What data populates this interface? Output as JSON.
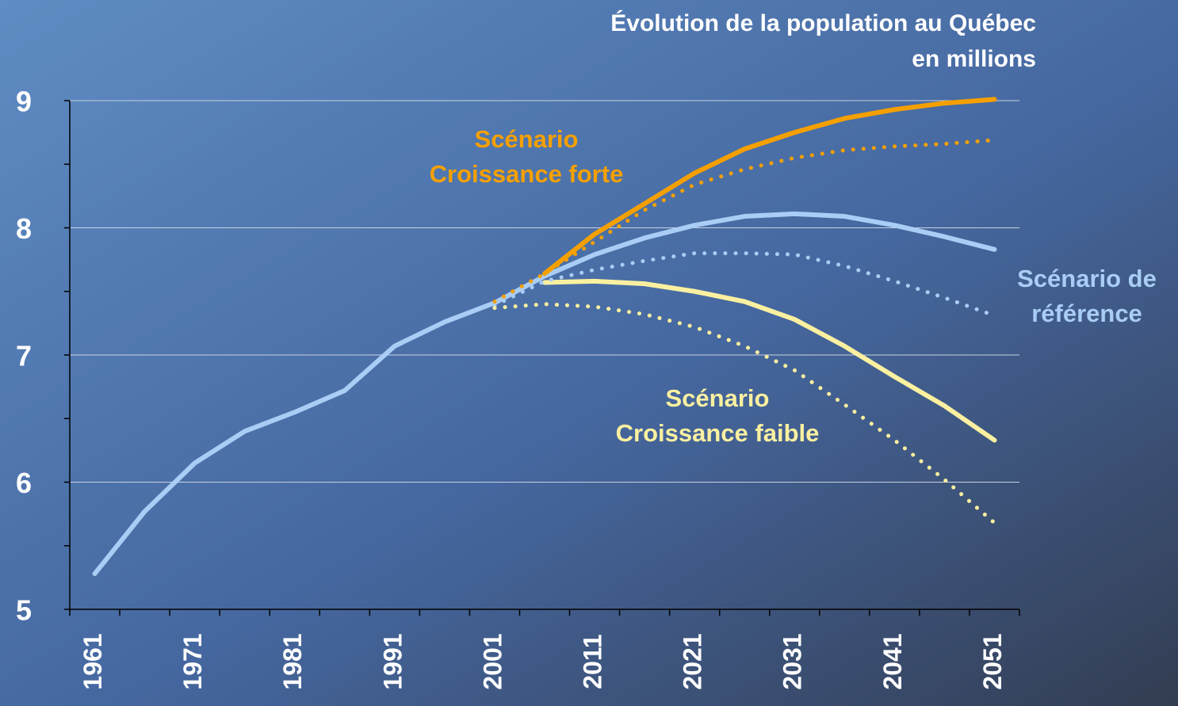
{
  "chart_data": {
    "type": "line",
    "title": [
      "Évolution de la population au Québec",
      "en millions"
    ],
    "categories": [
      "1961",
      null,
      "1971",
      null,
      "1981",
      null,
      "1991",
      null,
      "2001",
      null,
      "2011",
      null,
      "2021",
      null,
      "2031",
      null,
      "2041",
      null,
      "2051"
    ],
    "series": [
      {
        "color": "#a9cdf5",
        "dashed": false,
        "values": [
          5.28,
          5.77,
          6.15,
          6.4,
          6.55,
          6.72,
          7.07,
          7.26,
          7.41,
          7.62,
          7.79,
          7.92,
          8.02,
          8.09,
          8.11,
          8.09,
          8.02,
          7.93,
          7.83
        ]
      },
      {
        "color": "#f5a000",
        "dashed": false,
        "values": [
          null,
          null,
          null,
          null,
          null,
          null,
          null,
          null,
          null,
          7.64,
          7.95,
          8.19,
          8.43,
          8.62,
          8.75,
          8.86,
          8.93,
          8.98,
          9.01
        ]
      },
      {
        "color": "#faf0a0",
        "dashed": false,
        "values": [
          null,
          null,
          null,
          null,
          null,
          null,
          null,
          null,
          null,
          7.57,
          7.58,
          7.56,
          7.5,
          7.42,
          7.28,
          7.07,
          6.83,
          6.6,
          6.33
        ]
      },
      {
        "color": "#f5a000",
        "dashed": true,
        "values": [
          null,
          null,
          null,
          null,
          null,
          null,
          null,
          null,
          7.42,
          7.64,
          7.89,
          8.14,
          8.34,
          8.46,
          8.55,
          8.61,
          8.64,
          8.66,
          8.69
        ]
      },
      {
        "color": "#a9cdf5",
        "dashed": true,
        "values": [
          null,
          null,
          null,
          null,
          null,
          null,
          null,
          null,
          7.39,
          7.58,
          7.67,
          7.74,
          7.8,
          7.8,
          7.79,
          7.7,
          7.58,
          7.45,
          7.31
        ]
      },
      {
        "color": "#faf0a0",
        "dashed": true,
        "values": [
          null,
          null,
          null,
          null,
          null,
          null,
          null,
          null,
          7.37,
          7.4,
          7.38,
          7.32,
          7.22,
          7.07,
          6.88,
          6.61,
          6.33,
          6.02,
          5.68
        ]
      }
    ],
    "ylim": [
      5,
      9
    ],
    "yticks": [
      5,
      6,
      7,
      8,
      9
    ],
    "minor_yticks": [
      5.5,
      6.5,
      7.5,
      8.5
    ],
    "grid": true,
    "annotations": [
      {
        "lines": [
          "Scénario",
          "Croissance forte"
        ],
        "color": "#f5a000"
      },
      {
        "lines": [
          "Scénario de",
          "référence"
        ],
        "color": "#a9cdf5"
      },
      {
        "lines": [
          "Scénario",
          "Croissance faible"
        ],
        "color": "#faf0a0"
      }
    ]
  }
}
